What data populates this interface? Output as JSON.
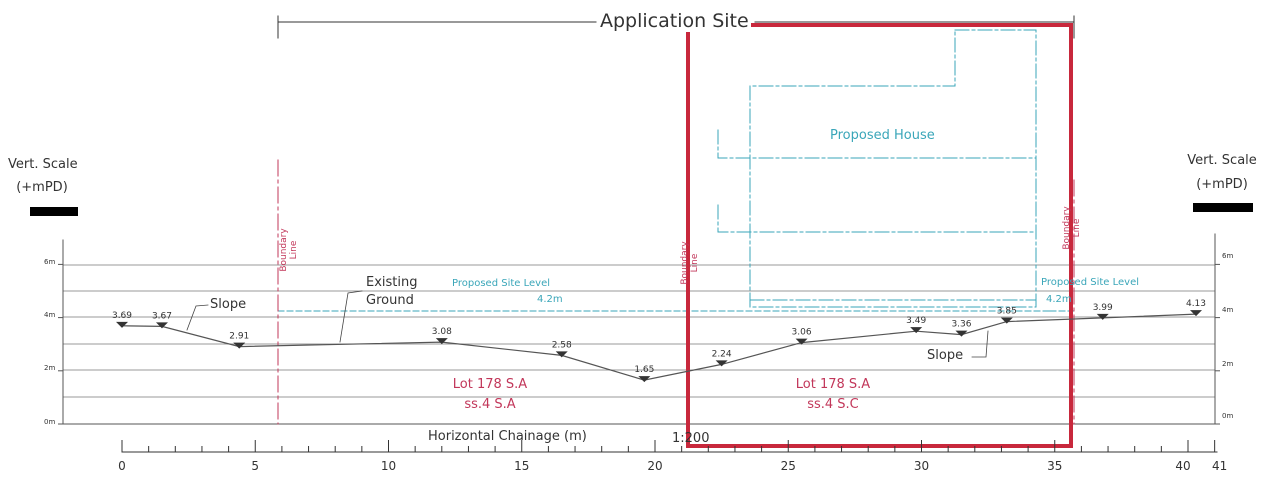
{
  "title": "Application Site",
  "left_scale": {
    "line1": "Vert. Scale",
    "line2": "(+mPD)"
  },
  "right_scale": {
    "line1": "Vert. Scale",
    "line2": "(+mPD)"
  },
  "axis_title": "Horizontal Chainage (m)",
  "scale_note": "1:200",
  "proposed_house": "Proposed House",
  "existing_ground": {
    "line1": "Existing",
    "line2": "Ground"
  },
  "slope_left": "Slope",
  "slope_right": "Slope",
  "proposed_site_level_left": "Proposed Site Level",
  "proposed_site_level_right": "Proposed Site Level",
  "level_left": "4.2m",
  "level_right": "4.2m",
  "boundary_left": {
    "line1": "Boundary",
    "line2": "Line"
  },
  "boundary_mid": {
    "line1": "Boundary",
    "line2": "Line"
  },
  "boundary_right": {
    "line1": "Boundary",
    "line2": "Line"
  },
  "lot_left": {
    "line1": "Lot 178 S.A",
    "line2": "ss.4 S.A"
  },
  "lot_right": {
    "line1": "Lot 178 S.A",
    "line2": "ss.4 S.C"
  },
  "x_ticks": [
    "0",
    "5",
    "10",
    "15",
    "20",
    "25",
    "30",
    "35",
    "40",
    "41"
  ],
  "y_ticks": [
    "0m",
    "2m",
    "4m",
    "6m"
  ],
  "ground_points": [
    {
      "chainage": 0.0,
      "level": "3.69"
    },
    {
      "chainage": 1.5,
      "level": "3.67"
    },
    {
      "chainage": 4.4,
      "level": "2.91"
    },
    {
      "chainage": 12.0,
      "level": "3.08"
    },
    {
      "chainage": 16.5,
      "level": "2.58"
    },
    {
      "chainage": 19.6,
      "level": "1.65"
    },
    {
      "chainage": 22.5,
      "level": "2.24"
    },
    {
      "chainage": 25.5,
      "level": "3.06"
    },
    {
      "chainage": 29.8,
      "level": "3.49"
    },
    {
      "chainage": 31.5,
      "level": "3.36"
    },
    {
      "chainage": 33.2,
      "level": "3.85"
    },
    {
      "chainage": 36.8,
      "level": "3.99"
    },
    {
      "chainage": 40.3,
      "level": "4.13"
    }
  ],
  "colors": {
    "line": "#555555",
    "cyan": "#3aa6b9",
    "red": "#c2375a",
    "frame": "#c8283c"
  }
}
